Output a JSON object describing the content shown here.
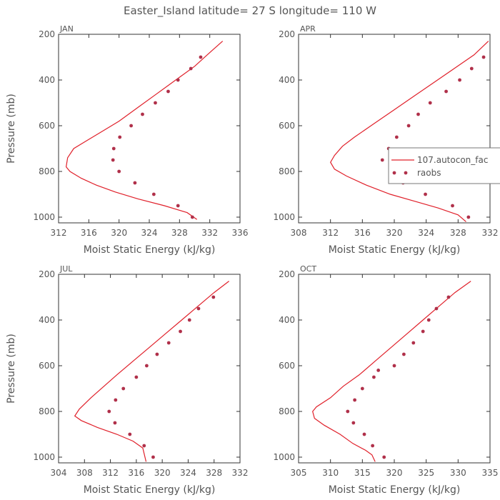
{
  "title": "Easter_Island   latitude= 27 S longitude= 110 W",
  "colors": {
    "model": "#e0202a",
    "obs": "#b0304a",
    "axis": "#333333",
    "text": "#555555"
  },
  "legend": {
    "panel": 1,
    "items": [
      {
        "label": "107.autocon_fac",
        "style": "line"
      },
      {
        "label": "raobs",
        "style": "dots"
      }
    ]
  },
  "chart_data": [
    {
      "type": "line",
      "panel_label": "JAN",
      "xlabel": "Moist Static Energy (kJ/kg)",
      "ylabel": "Pressure (mb)",
      "xlim": [
        312,
        336
      ],
      "xticks": [
        312,
        316,
        320,
        324,
        328,
        332,
        336
      ],
      "ylim": [
        200,
        1025
      ],
      "yticks": [
        200,
        400,
        600,
        800,
        1000
      ],
      "series": [
        {
          "name": "107.autocon_fac",
          "style": "line",
          "x": [
            333.7,
            332,
            330,
            327.5,
            325,
            322.5,
            320,
            317.5,
            315.5,
            314,
            313.2,
            313,
            313.5,
            315,
            317,
            319.5,
            322.5,
            326,
            329,
            330.3
          ],
          "y": [
            230,
            280,
            340,
            400,
            460,
            520,
            580,
            630,
            670,
            700,
            740,
            780,
            800,
            830,
            860,
            890,
            920,
            950,
            980,
            1010
          ]
        },
        {
          "name": "raobs",
          "style": "dots",
          "x": [
            330.8,
            329.5,
            327.8,
            326.5,
            324.8,
            323.1,
            321.6,
            320.1,
            319.3,
            319.2,
            320.0,
            322.1,
            324.6,
            327.8,
            329.7
          ],
          "y": [
            300,
            350,
            400,
            450,
            500,
            550,
            600,
            650,
            700,
            750,
            800,
            850,
            900,
            950,
            1000
          ]
        }
      ]
    },
    {
      "type": "line",
      "panel_label": "APR",
      "xlabel": "Moist Static Energy (kJ/kg)",
      "ylabel": "",
      "xlim": [
        308,
        332
      ],
      "xticks": [
        308,
        312,
        316,
        320,
        324,
        328,
        332
      ],
      "ylim": [
        200,
        1025
      ],
      "yticks": [
        200,
        400,
        600,
        800,
        1000
      ],
      "series": [
        {
          "name": "107.autocon_fac",
          "style": "line",
          "x": [
            331.8,
            330,
            327.5,
            325,
            322.5,
            320,
            317.5,
            315,
            313.5,
            312.5,
            312,
            312.5,
            314,
            316.5,
            319.5,
            322.5,
            325.5,
            328,
            329
          ],
          "y": [
            230,
            290,
            350,
            410,
            470,
            530,
            590,
            650,
            690,
            730,
            760,
            790,
            820,
            860,
            900,
            930,
            960,
            990,
            1020
          ]
        },
        {
          "name": "raobs",
          "style": "dots",
          "x": [
            331.2,
            329.7,
            328.2,
            326.5,
            324.5,
            323.0,
            321.8,
            320.3,
            319.3,
            318.5,
            319.6,
            320.8,
            321.1,
            323.9,
            327.3,
            329.3
          ],
          "y": [
            300,
            350,
            400,
            450,
            500,
            550,
            600,
            650,
            700,
            750,
            800,
            810,
            850,
            900,
            950,
            1000
          ]
        }
      ]
    },
    {
      "type": "line",
      "panel_label": "JUL",
      "xlabel": "Moist Static Energy (kJ/kg)",
      "ylabel": "Pressure (mb)",
      "xlim": [
        304,
        332
      ],
      "xticks": [
        304,
        308,
        312,
        316,
        320,
        324,
        328,
        332
      ],
      "ylim": [
        200,
        1025
      ],
      "yticks": [
        200,
        400,
        600,
        800,
        1000
      ],
      "series": [
        {
          "name": "107.autocon_fac",
          "style": "line",
          "x": [
            330.3,
            328,
            325.5,
            323,
            320.5,
            318,
            315.5,
            313,
            311,
            309,
            307.2,
            306.5,
            307.5,
            310,
            313,
            315.5,
            317,
            317.5
          ],
          "y": [
            230,
            280,
            340,
            400,
            460,
            520,
            580,
            640,
            690,
            740,
            790,
            820,
            840,
            870,
            900,
            930,
            960,
            1020
          ]
        },
        {
          "name": "raobs",
          "style": "dots",
          "x": [
            327.9,
            325.6,
            324.2,
            322.8,
            321.0,
            319.2,
            317.6,
            316.0,
            314.0,
            312.8,
            311.8,
            312.7,
            315.0,
            317.2,
            318.6
          ],
          "y": [
            300,
            350,
            400,
            450,
            500,
            550,
            600,
            650,
            700,
            750,
            800,
            850,
            900,
            950,
            1000
          ]
        }
      ]
    },
    {
      "type": "line",
      "panel_label": "OCT",
      "xlabel": "Moist Static Energy (kJ/kg)",
      "ylabel": "",
      "xlim": [
        305,
        335
      ],
      "xticks": [
        305,
        310,
        315,
        320,
        325,
        330,
        335
      ],
      "ylim": [
        200,
        1025
      ],
      "yticks": [
        200,
        400,
        600,
        800,
        1000
      ],
      "series": [
        {
          "name": "107.autocon_fac",
          "style": "line",
          "x": [
            332,
            329.5,
            327,
            324.5,
            322,
            319.5,
            317,
            314.5,
            312,
            310,
            307.8,
            307.2,
            307.5,
            309,
            311.5,
            313.5,
            315.5,
            316.5,
            317
          ],
          "y": [
            230,
            280,
            340,
            400,
            460,
            520,
            580,
            640,
            690,
            740,
            780,
            800,
            830,
            860,
            900,
            940,
            970,
            990,
            1020
          ]
        },
        {
          "name": "raobs",
          "style": "dots",
          "x": [
            328.5,
            326.6,
            325.4,
            324.5,
            323.0,
            321.5,
            320.0,
            317.5,
            316.8,
            315.0,
            313.8,
            312.7,
            313.6,
            315.3,
            316.6,
            318.4
          ],
          "y": [
            300,
            350,
            400,
            450,
            500,
            550,
            600,
            620,
            650,
            700,
            750,
            800,
            850,
            900,
            950,
            1000
          ]
        }
      ]
    }
  ]
}
